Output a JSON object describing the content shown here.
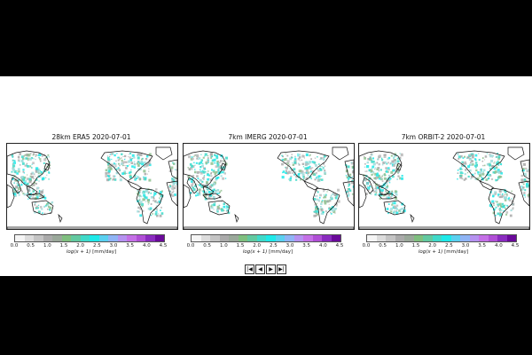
{
  "panels": [
    {
      "title": "28km ERA5 2020-07-01"
    },
    {
      "title": "7km IMERG 2020-07-01"
    },
    {
      "title": "7km ORBIT-2 2020-07-01"
    }
  ],
  "colorbar": {
    "ticks": [
      "0.0",
      "0.5",
      "1.0",
      "1.5",
      "2.0",
      "2.5",
      "3.0",
      "3.5",
      "4.0",
      "4.5"
    ],
    "label_math": "log(x + 1)",
    "label_unit": " [mm/day]",
    "colors": [
      "#f5f5f5",
      "#dcdcdc",
      "#c4c4c4",
      "#aaaaaa",
      "#9aa89a",
      "#7fbf7f",
      "#62c9a0",
      "#3fd9c9",
      "#1ee9e9",
      "#5ad0f0",
      "#8fb4f5",
      "#b592f0",
      "#c470e6",
      "#b04fd6",
      "#8a2cbf",
      "#6a0a9a"
    ]
  },
  "player": {
    "buttons": [
      {
        "name": "first-frame-button",
        "glyph": "|◀"
      },
      {
        "name": "prev-frame-button",
        "glyph": "◀"
      },
      {
        "name": "next-frame-button",
        "glyph": "▶"
      },
      {
        "name": "last-frame-button",
        "glyph": "▶|"
      }
    ]
  }
}
